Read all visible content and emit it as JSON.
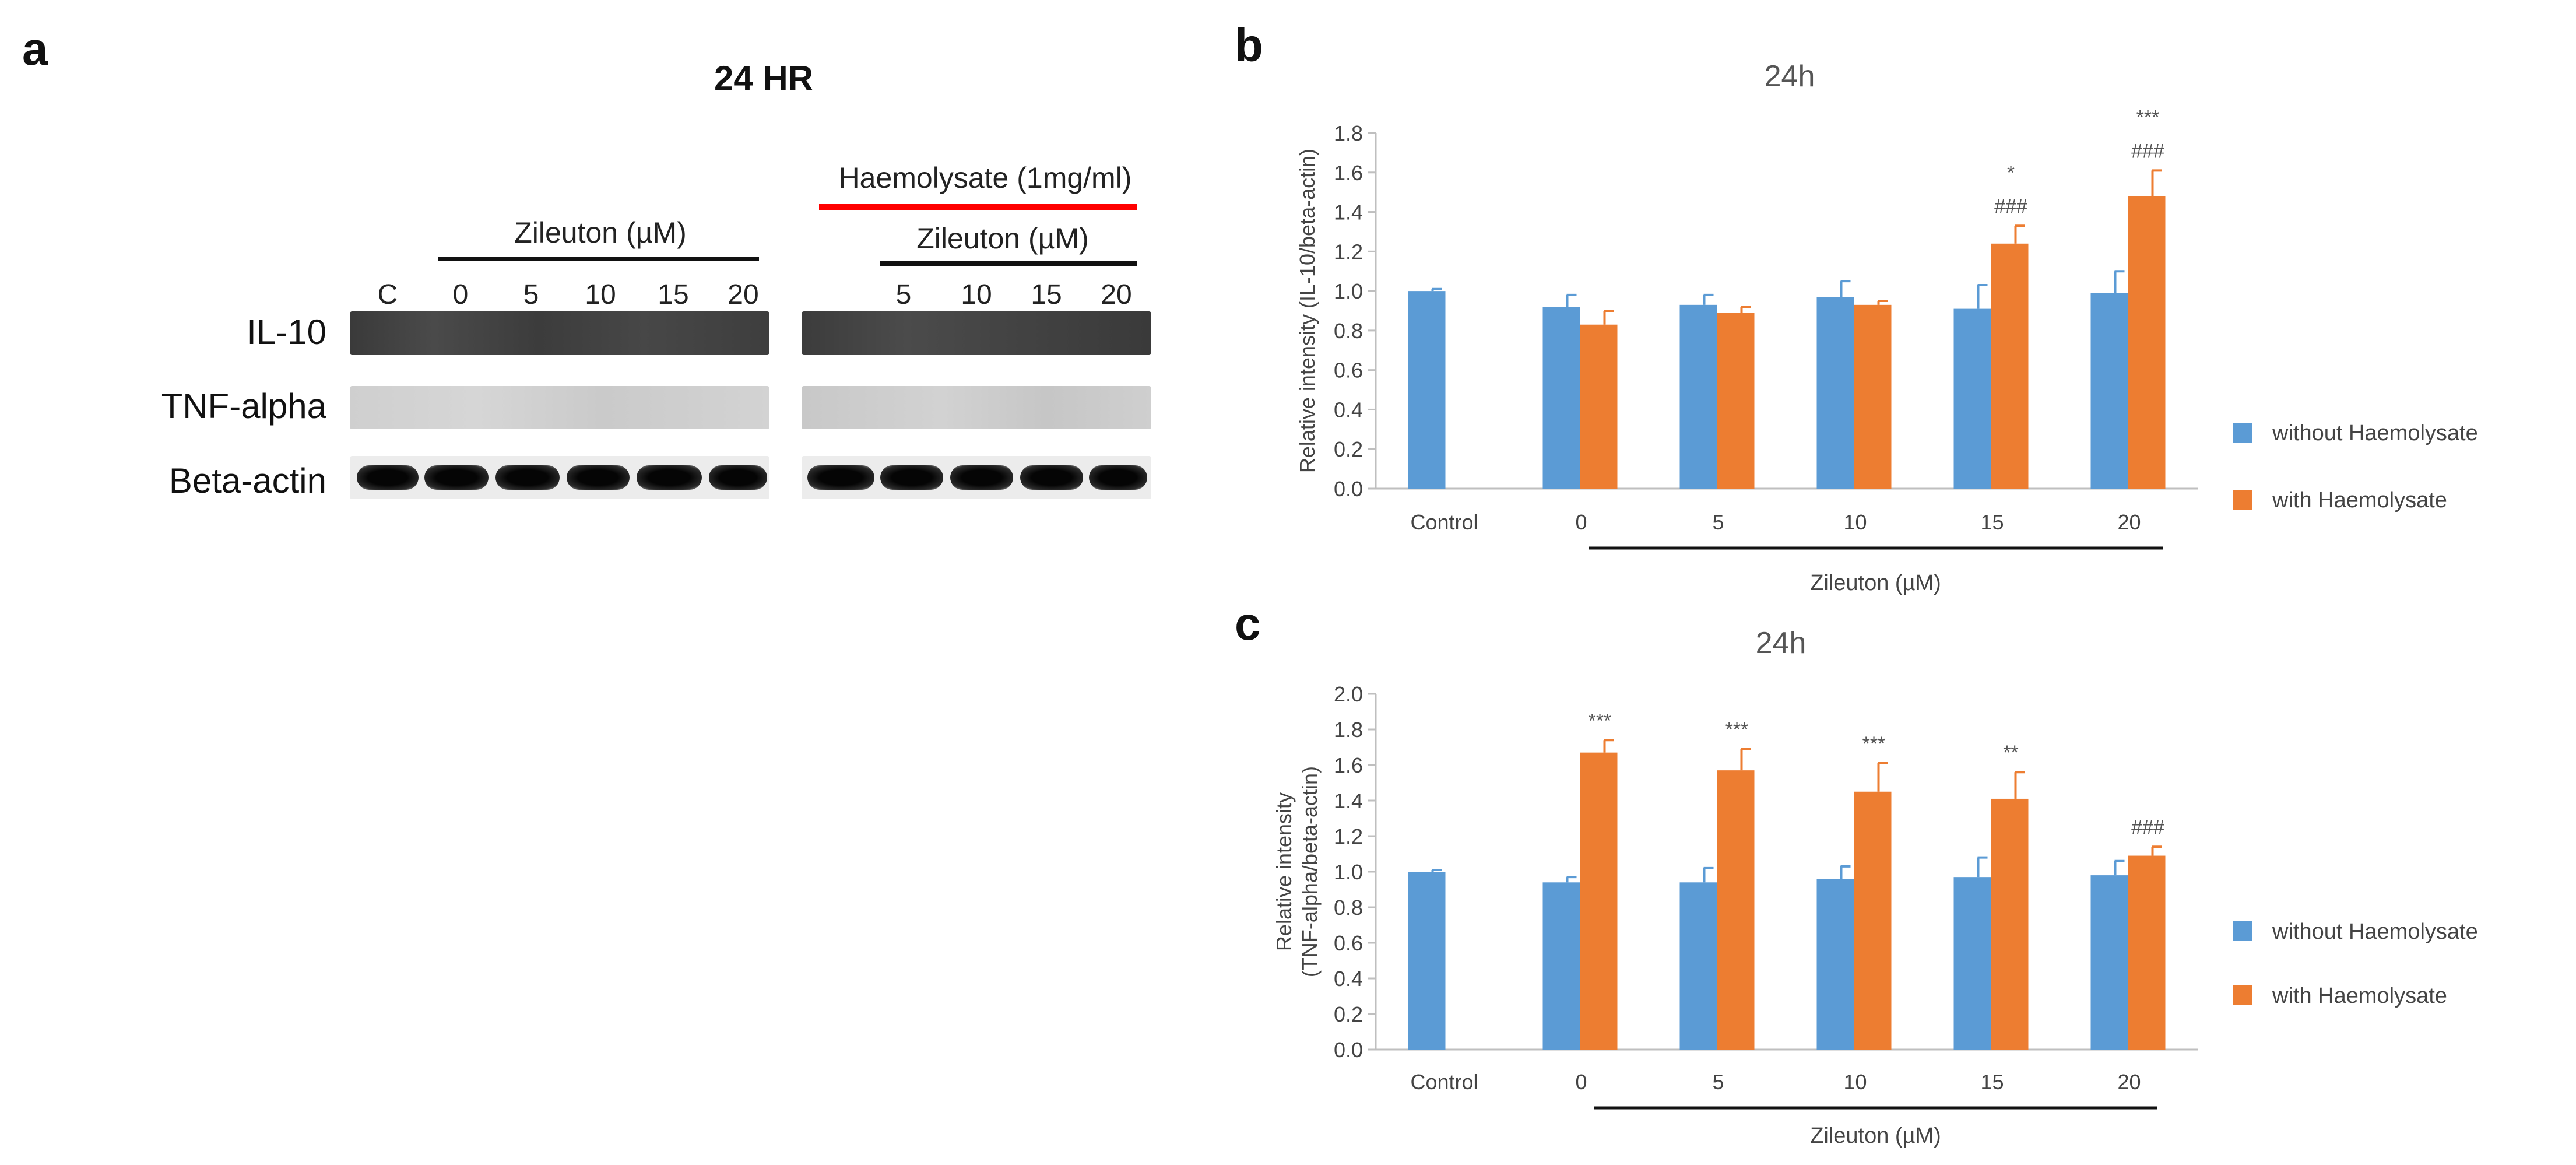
{
  "panel_a": {
    "letter": "a",
    "title": "24 HR",
    "haemolysate_label": "Haemolysate (1mg/ml)",
    "zileuton_label_left": "Zileuton (µM)",
    "zileuton_label_right": "Zileuton (µM)",
    "lanes_left": [
      "C",
      "0",
      "5",
      "10",
      "15",
      "20"
    ],
    "lanes_right": [
      "5",
      "10",
      "15",
      "20"
    ],
    "rows": [
      "IL-10",
      "TNF-alpha",
      "Beta-actin"
    ],
    "haemolysate_line_color": "#ff0000"
  },
  "chart_data": [
    {
      "panel": "b",
      "type": "bar",
      "title": "24h",
      "ylabel": "Relative intensity (IL-10/beta-actin)",
      "xlabel": "Zileuton (µM)",
      "categories": [
        "Control",
        "0",
        "5",
        "10",
        "15",
        "20"
      ],
      "ylim": [
        0,
        1.8
      ],
      "yticks": [
        "0.0",
        "0.2",
        "0.4",
        "0.6",
        "0.8",
        "1.0",
        "1.2",
        "1.4",
        "1.6",
        "1.8"
      ],
      "series": [
        {
          "name": "without Haemolysate",
          "color": "#5b9bd5",
          "values": [
            1.0,
            0.92,
            0.93,
            0.97,
            0.91,
            0.99
          ],
          "errors": [
            0.01,
            0.06,
            0.05,
            0.08,
            0.12,
            0.11
          ]
        },
        {
          "name": "with Haemolysate",
          "color": "#ed7d31",
          "values": [
            null,
            0.83,
            0.89,
            0.93,
            1.24,
            1.48
          ],
          "errors": [
            null,
            0.07,
            0.03,
            0.02,
            0.09,
            0.13
          ]
        }
      ],
      "annotations": [
        {
          "category": "15",
          "lines": [
            "*",
            "###"
          ]
        },
        {
          "category": "20",
          "lines": [
            "***",
            "###"
          ]
        }
      ]
    },
    {
      "panel": "c",
      "type": "bar",
      "title": "24h",
      "ylabel": "Relative intensity (TNF-alpha/beta-actin)",
      "ylabel_lines": [
        "Relative intensity",
        "(TNF-alpha/beta-actin)"
      ],
      "xlabel": "Zileuton (µM)",
      "categories": [
        "Control",
        "0",
        "5",
        "10",
        "15",
        "20"
      ],
      "ylim": [
        0,
        2.0
      ],
      "yticks": [
        "0.0",
        "0.2",
        "0.4",
        "0.6",
        "0.8",
        "1.0",
        "1.2",
        "1.4",
        "1.6",
        "1.8",
        "2.0"
      ],
      "series": [
        {
          "name": "without Haemolysate",
          "color": "#5b9bd5",
          "values": [
            1.0,
            0.94,
            0.94,
            0.96,
            0.97,
            0.98
          ],
          "errors": [
            0.01,
            0.03,
            0.08,
            0.07,
            0.11,
            0.08
          ]
        },
        {
          "name": "with Haemolysate",
          "color": "#ed7d31",
          "values": [
            null,
            1.67,
            1.57,
            1.45,
            1.41,
            1.09
          ],
          "errors": [
            null,
            0.07,
            0.12,
            0.16,
            0.15,
            0.05
          ]
        }
      ],
      "annotations": [
        {
          "category": "0",
          "lines": [
            "***"
          ]
        },
        {
          "category": "5",
          "lines": [
            "***"
          ]
        },
        {
          "category": "10",
          "lines": [
            "***"
          ]
        },
        {
          "category": "15",
          "lines": [
            "**"
          ]
        },
        {
          "category": "20",
          "lines": [
            "###"
          ]
        }
      ]
    }
  ],
  "legend_b": {
    "items": [
      "without Haemolysate",
      "with Haemolysate"
    ]
  },
  "legend_c": {
    "items": [
      "without Haemolysate",
      "with Haemolysate"
    ]
  }
}
